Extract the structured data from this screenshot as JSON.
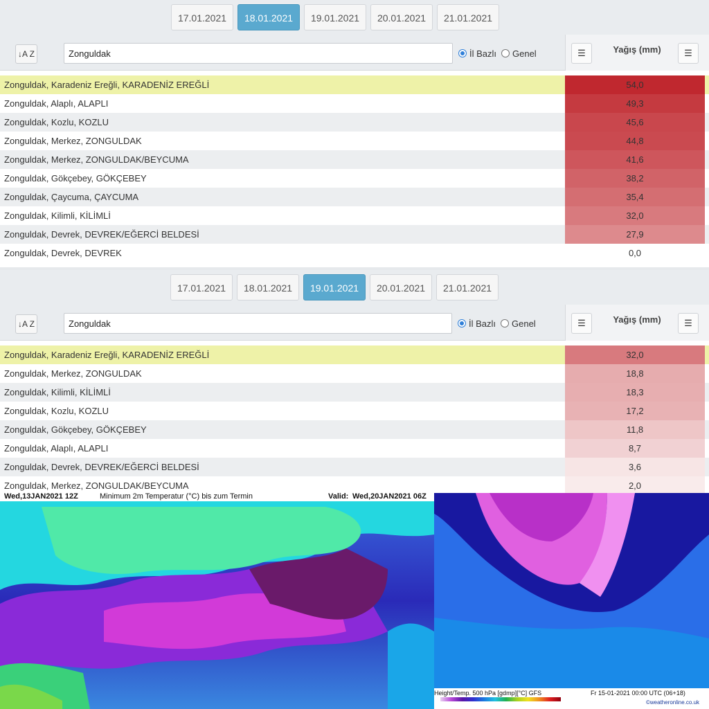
{
  "panel1": {
    "tabs": [
      "17.01.2021",
      "18.01.2021",
      "19.01.2021",
      "20.01.2021",
      "21.01.2021"
    ],
    "active_tab": 1,
    "sort_button": "↓A Z",
    "search_value": "Zonguldak",
    "radio_il": "İl Bazlı",
    "radio_genel": "Genel",
    "column_title": "Yağış (mm)",
    "rows": [
      {
        "name": "Zonguldak, Karadeniz Ereğli, KARADENİZ EREĞLİ",
        "value": "54,0"
      },
      {
        "name": "Zonguldak, Alaplı, ALAPLI",
        "value": "49,3"
      },
      {
        "name": "Zonguldak, Kozlu, KOZLU",
        "value": "45,6"
      },
      {
        "name": "Zonguldak, Merkez, ZONGULDAK",
        "value": "44,8"
      },
      {
        "name": "Zonguldak, Merkez, ZONGULDAK/BEYCUMA",
        "value": "41,6"
      },
      {
        "name": "Zonguldak, Gökçebey, GÖKÇEBEY",
        "value": "38,2"
      },
      {
        "name": "Zonguldak, Çaycuma, ÇAYCUMA",
        "value": "35,4"
      },
      {
        "name": "Zonguldak, Kilimli, KİLİMLİ",
        "value": "32,0"
      },
      {
        "name": "Zonguldak, Devrek, DEVREK/EĞERCİ BELDESİ",
        "value": "27,9"
      },
      {
        "name": "Zonguldak, Devrek, DEVREK",
        "value": "0,0"
      }
    ]
  },
  "panel2": {
    "tabs": [
      "17.01.2021",
      "18.01.2021",
      "19.01.2021",
      "20.01.2021",
      "21.01.2021"
    ],
    "active_tab": 2,
    "sort_button": "↓A Z",
    "search_value": "Zonguldak",
    "radio_il": "İl Bazlı",
    "radio_genel": "Genel",
    "column_title": "Yağış (mm)",
    "rows": [
      {
        "name": "Zonguldak, Karadeniz Ereğli, KARADENİZ EREĞLİ",
        "value": "32,0"
      },
      {
        "name": "Zonguldak, Merkez, ZONGULDAK",
        "value": "18,8"
      },
      {
        "name": "Zonguldak, Kilimli, KİLİMLİ",
        "value": "18,3"
      },
      {
        "name": "Zonguldak, Kozlu, KOZLU",
        "value": "17,2"
      },
      {
        "name": "Zonguldak, Gökçebey, GÖKÇEBEY",
        "value": "11,8"
      },
      {
        "name": "Zonguldak, Alaplı, ALAPLI",
        "value": "8,7"
      },
      {
        "name": "Zonguldak, Devrek, DEVREK/EĞERCİ BELDESİ",
        "value": "3,6"
      },
      {
        "name": "Zonguldak, Merkez, ZONGULDAK/BEYCUMA",
        "value": "2,0"
      }
    ]
  },
  "colors": {
    "active_tab": "#5aa9cf",
    "highlight_row": "#eef2a8",
    "rain_max": "#c0282f",
    "rain_min": "#fbf2f2"
  },
  "map_left": {
    "header_left": "Wed,13JAN2021 12Z",
    "header_mid": "Minimum 2m Temperatur (°C) bis zum Termin",
    "header_right_label": "Valid:",
    "header_right_value": "Wed,20JAN2021 06Z"
  },
  "map_right": {
    "footer_left": "Height/Temp. 500 hPa [gdmp][°C] GFS",
    "footer_right": "Fr 15-01-2021 00:00 UTC (06+18)",
    "credit": "©weatheronline.co.uk"
  }
}
